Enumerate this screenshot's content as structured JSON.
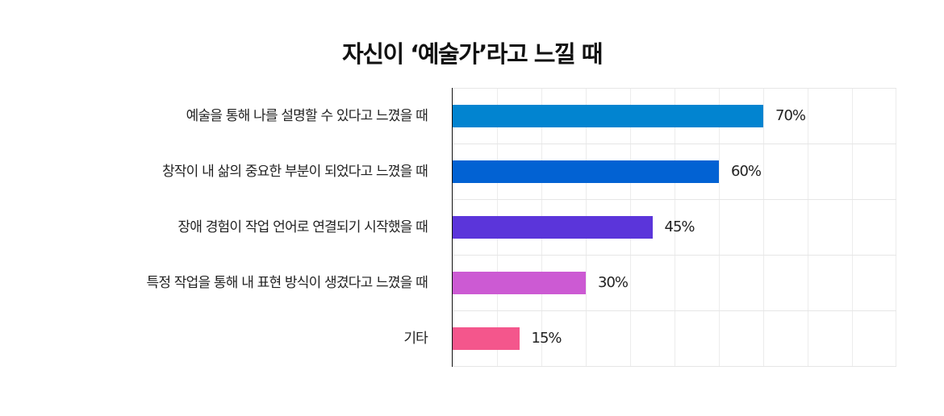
{
  "title": "자신이 ‘예술가’라고 느낄 때",
  "chart_data": {
    "type": "bar",
    "orientation": "horizontal",
    "title": "자신이 ‘예술가’라고 느낄 때",
    "xlabel": "",
    "ylabel": "",
    "xlim": [
      0,
      100
    ],
    "grid": true,
    "legend": null,
    "categories": [
      "예술을 통해 나를 설명할 수 있다고 느꼈을 때",
      "창작이 내 삶의 중요한 부분이 되었다고 느꼈을 때",
      "장애 경험이 작업 언어로 연결되기 시작했을 때",
      "특정 작업을 통해 내 표현 방식이 생겼다고 느꼈을 때",
      "기타"
    ],
    "values": [
      70,
      60,
      45,
      30,
      15
    ],
    "value_labels": [
      "70%",
      "60%",
      "45%",
      "30%",
      "15%"
    ],
    "colors": [
      "#0284d0",
      "#0262d3",
      "#5b35da",
      "#cc5ad3",
      "#f4568c"
    ]
  }
}
